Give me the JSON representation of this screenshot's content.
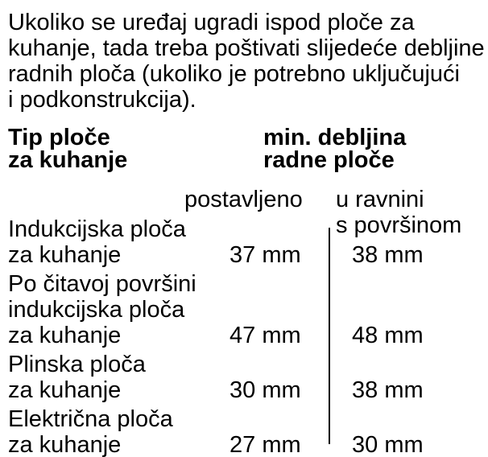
{
  "intro": {
    "lines": [
      "Ukoliko se uređaj ugradi ispod ploče za",
      "kuhanje, tada treba poštivati slijedeće debljine",
      "radnih ploča (ukoliko je potrebno uključujući",
      "i podkonstrukcija)."
    ]
  },
  "table": {
    "header": {
      "type_lines": [
        "Tip ploče",
        "za kuhanje"
      ],
      "thickness_lines": [
        "min. debljina",
        "radne ploče"
      ]
    },
    "subheader": {
      "installed": "postavljeno",
      "flush_lines": [
        "u ravnini",
        "s površinom"
      ]
    },
    "rows": [
      {
        "label_lines": [
          "Indukcijska ploča",
          "za kuhanje"
        ],
        "installed": "37 mm",
        "flush": "38 mm"
      },
      {
        "label_lines": [
          "Po čitavoj površini",
          "indukcijska ploča",
          "za kuhanje"
        ],
        "installed": "47 mm",
        "flush": "48 mm"
      },
      {
        "label_lines": [
          "Plinska ploča",
          "za kuhanje"
        ],
        "installed": "30 mm",
        "flush": "38 mm"
      },
      {
        "label_lines": [
          "Električna ploča",
          "za kuhanje"
        ],
        "installed": "27 mm",
        "flush": "30 mm"
      }
    ]
  },
  "colors": {
    "text": "#000000",
    "background": "#ffffff",
    "divider": "#000000"
  }
}
